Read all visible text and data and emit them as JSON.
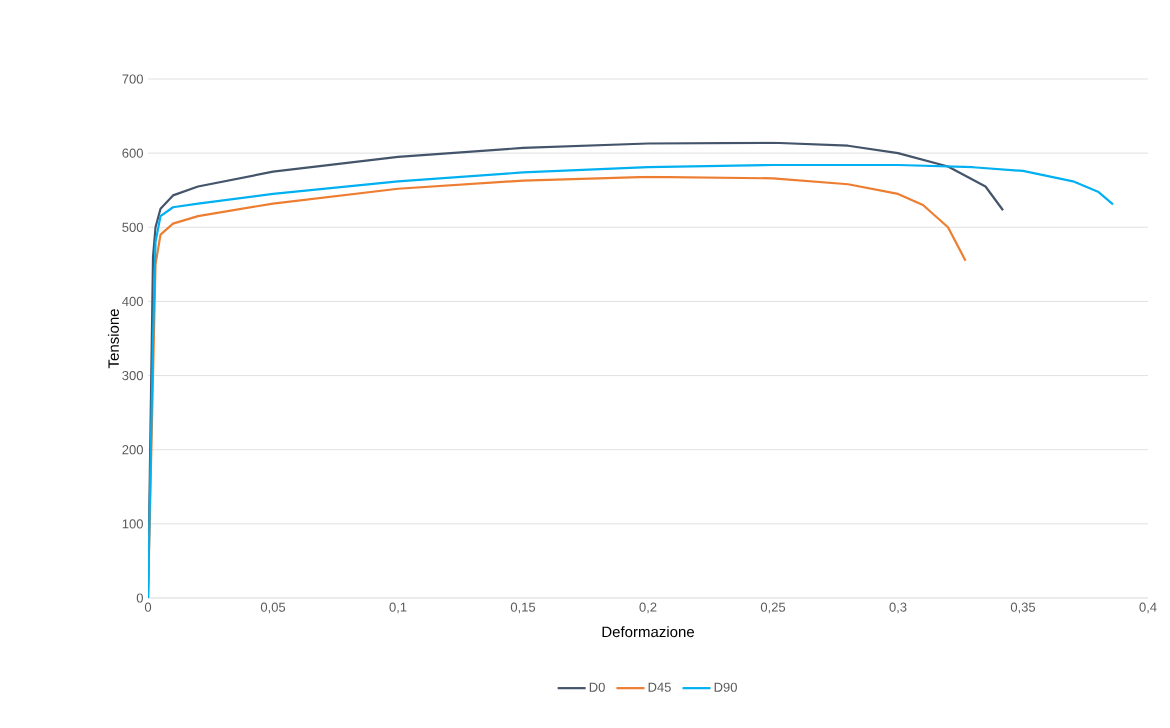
{
  "chart_data": {
    "type": "line",
    "xlabel": "Deformazione",
    "ylabel": "Tensione",
    "xlim": [
      0,
      0.4
    ],
    "ylim": [
      0,
      700
    ],
    "xticks": [
      0,
      {
        "value": 0.05,
        "label": "0,05"
      },
      {
        "value": 0.1,
        "label": "0,1"
      },
      {
        "value": 0.15,
        "label": "0,15"
      },
      {
        "value": 0.2,
        "label": "0,2"
      },
      {
        "value": 0.25,
        "label": "0,25"
      },
      {
        "value": 0.3,
        "label": "0,3"
      },
      {
        "value": 0.35,
        "label": "0,35"
      },
      {
        "value": 0.4,
        "label": "0,4"
      }
    ],
    "yticks": [
      0,
      100,
      200,
      300,
      400,
      500,
      600,
      700
    ],
    "grid": "y",
    "legend": "bottom",
    "marker": "none",
    "line_style": "solid",
    "series": [
      {
        "name": "D0",
        "color": "#44546a",
        "x": [
          0,
          0.002,
          0.003,
          0.005,
          0.01,
          0.02,
          0.05,
          0.1,
          0.15,
          0.2,
          0.25,
          0.28,
          0.3,
          0.32,
          0.335,
          0.342
        ],
        "values": [
          0,
          460,
          500,
          525,
          543,
          555,
          575,
          595,
          607,
          613,
          614,
          610,
          600,
          582,
          555,
          523
        ]
      },
      {
        "name": "D45",
        "color": "#ed7d31",
        "x": [
          0,
          0.002,
          0.003,
          0.005,
          0.01,
          0.02,
          0.05,
          0.1,
          0.15,
          0.2,
          0.25,
          0.28,
          0.3,
          0.31,
          0.32,
          0.327
        ],
        "values": [
          0,
          300,
          450,
          490,
          505,
          515,
          532,
          552,
          563,
          568,
          566,
          558,
          545,
          530,
          500,
          455
        ]
      },
      {
        "name": "D90",
        "color": "#00b0f0",
        "x": [
          0,
          0.002,
          0.003,
          0.005,
          0.01,
          0.02,
          0.05,
          0.1,
          0.15,
          0.2,
          0.25,
          0.3,
          0.33,
          0.35,
          0.37,
          0.38,
          0.386
        ],
        "values": [
          0,
          350,
          480,
          515,
          527,
          532,
          545,
          562,
          574,
          581,
          584,
          584,
          581,
          576,
          562,
          548,
          531
        ]
      }
    ]
  }
}
